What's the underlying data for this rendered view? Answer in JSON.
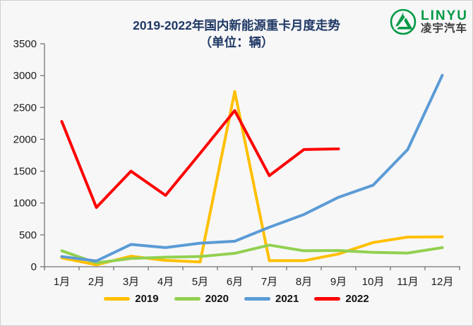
{
  "header": {
    "title": "2019-2022年国内新能源重卡月度走势",
    "subtitle": "（单位：辆）"
  },
  "logo": {
    "name": "LINYU",
    "subtext": "凌宇汽车",
    "green": "#009944",
    "dark": "#3a3a3a"
  },
  "axis": {
    "line_color": "#737373",
    "label_color": "#1a1a1a",
    "y_labels": [
      "0",
      "500",
      "1000",
      "1500",
      "2000",
      "2500",
      "3000",
      "3500"
    ]
  },
  "chart_data": {
    "type": "line",
    "title": "2019-2022年国内新能源重卡月度走势",
    "subtitle": "（单位：辆）",
    "categories": [
      "1月",
      "2月",
      "3月",
      "4月",
      "5月",
      "6月",
      "7月",
      "8月",
      "9月",
      "10月",
      "11月",
      "12月"
    ],
    "series": [
      {
        "name": "2019",
        "color": "#FFC000",
        "values": [
          140,
          30,
          165,
          100,
          75,
          2750,
          95,
          95,
          200,
          380,
          465,
          470
        ]
      },
      {
        "name": "2020",
        "color": "#92D050",
        "values": [
          250,
          60,
          130,
          150,
          160,
          210,
          340,
          250,
          255,
          225,
          215,
          300
        ]
      },
      {
        "name": "2021",
        "color": "#5B9BD5",
        "values": [
          160,
          90,
          350,
          300,
          370,
          400,
          620,
          820,
          1090,
          1280,
          1840,
          3005
        ]
      },
      {
        "name": "2022",
        "color": "#FE0000",
        "values": [
          2280,
          930,
          1500,
          1120,
          1780,
          2450,
          1430,
          1840,
          1850,
          null,
          null,
          null
        ]
      }
    ],
    "ylim": [
      0,
      3500
    ],
    "ytick_step": 500,
    "grid": false,
    "legend_position": "bottom"
  }
}
